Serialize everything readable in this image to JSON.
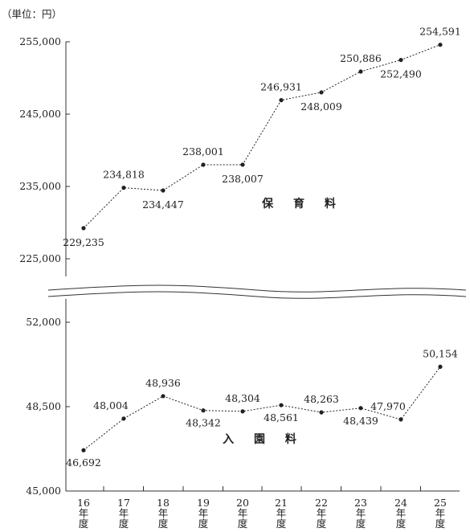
{
  "chart_data": [
    {
      "type": "line",
      "unit": "（単位：円）",
      "series": [
        {
          "name": "保 育 料",
          "values": [
            229235,
            234818,
            234447,
            238001,
            238007,
            246931,
            248009,
            250886,
            252490,
            254591
          ],
          "labels": [
            "229,235",
            "234,818",
            "234,447",
            "238,001",
            "238,007",
            "246,931",
            "248,009",
            "250,886",
            "252,490",
            "254,591"
          ]
        }
      ],
      "yticks": [
        225000,
        235000,
        245000,
        255000
      ],
      "ytick_labels": [
        "225,000",
        "235,000",
        "245,000",
        "255,000"
      ],
      "ylim": [
        220000,
        255000
      ],
      "grid": false,
      "line_style": "dotted"
    },
    {
      "type": "line",
      "series": [
        {
          "name": "入 園 料",
          "values": [
            46692,
            48004,
            48936,
            48342,
            48304,
            48561,
            48263,
            48439,
            47970,
            50154
          ],
          "labels": [
            "46,692",
            "48,004",
            "48,936",
            "48,342",
            "48,304",
            "48,561",
            "48,263",
            "48,439",
            "47,970",
            "50,154"
          ]
        }
      ],
      "yticks": [
        45000,
        48500,
        52000
      ],
      "ytick_labels": [
        "45,000",
        "48,500",
        "52,000"
      ],
      "ylim": [
        45000,
        52000
      ],
      "grid": false,
      "line_style": "dotted"
    }
  ],
  "categories": [
    [
      "16",
      "年",
      "度"
    ],
    [
      "17",
      "年",
      "度"
    ],
    [
      "18",
      "年",
      "度"
    ],
    [
      "19",
      "年",
      "度"
    ],
    [
      "20",
      "年",
      "度"
    ],
    [
      "21",
      "年",
      "度"
    ],
    [
      "22",
      "年",
      "度"
    ],
    [
      "23",
      "年",
      "度"
    ],
    [
      "24",
      "年",
      "度"
    ],
    [
      "25",
      "年",
      "度"
    ]
  ],
  "colors": {
    "line": "#222222",
    "axis": "#333333",
    "background": "#ffffff"
  }
}
